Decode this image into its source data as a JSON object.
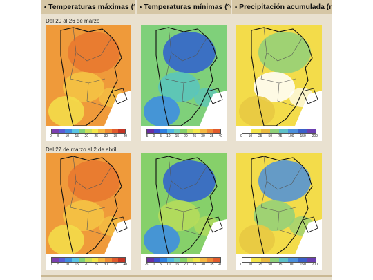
{
  "headers": [
    {
      "bullet": "•",
      "title": "Temperaturas máximas (°C)"
    },
    {
      "bullet": "•",
      "title": "Temperaturas mínimas (°C)"
    },
    {
      "bullet": "•",
      "title": "Precipitación acumulada (mm)"
    }
  ],
  "periods": [
    "Del 20 al 26 de marzo",
    "Del 27 de marzo al 2 de abril"
  ],
  "scales": {
    "tmax": {
      "ticks": [
        "0",
        "5",
        "10",
        "15",
        "20",
        "25",
        "30",
        "35",
        "40"
      ],
      "colors": [
        "#7b3fb0",
        "#5a5bd4",
        "#3f8ee0",
        "#58c4e4",
        "#7fd07a",
        "#c9e05a",
        "#f3e74b",
        "#f5b843",
        "#ef8a36",
        "#e15b2c",
        "#c43424"
      ]
    },
    "tmin": {
      "ticks": [
        "-5",
        "0",
        "5",
        "10",
        "15",
        "20",
        "25",
        "30",
        "35",
        "40"
      ],
      "colors": [
        "#6a2fa0",
        "#3a4fd0",
        "#2f7fe0",
        "#4fb4e6",
        "#6fd0b8",
        "#86d06a",
        "#c9e05a",
        "#f3e74b",
        "#f5b843",
        "#ef8a36",
        "#e15b2c"
      ]
    },
    "precip": {
      "ticks": [
        "0",
        "10",
        "25",
        "50",
        "75",
        "100",
        "150",
        "200"
      ],
      "colors": [
        "#ffffff",
        "#f3e44a",
        "#e8b93f",
        "#8fd07a",
        "#5ec0c8",
        "#4b8fdc",
        "#3a5fc8",
        "#6a3fb0"
      ]
    }
  },
  "panels": [
    {
      "row": 0,
      "col": 0,
      "base": "#ef9a3a",
      "mid": "#f5c545",
      "south": "#f3dc4a",
      "accent": "#e8772f",
      "ocean": "#ffffff"
    },
    {
      "row": 0,
      "col": 1,
      "base": "#7fd07a",
      "mid": "#58c4c0",
      "south": "#3f8ee0",
      "accent": "#2f5fd0",
      "ocean": "#ffffff"
    },
    {
      "row": 0,
      "col": 2,
      "base": "#f3dc4a",
      "mid": "#ffffff",
      "south": "#e8c943",
      "accent": "#8fd07a",
      "ocean": "#ffffff"
    },
    {
      "row": 1,
      "col": 0,
      "base": "#ef9a3a",
      "mid": "#f5c545",
      "south": "#f3dc4a",
      "accent": "#e8772f",
      "ocean": "#ffffff"
    },
    {
      "row": 1,
      "col": 1,
      "base": "#86d06a",
      "mid": "#b8dd5a",
      "south": "#3f8ee0",
      "accent": "#2f5fd0",
      "ocean": "#ffffff"
    },
    {
      "row": 1,
      "col": 2,
      "base": "#f3dc4a",
      "mid": "#8fd07a",
      "south": "#e8c943",
      "accent": "#4b8fdc",
      "ocean": "#ffffff"
    }
  ]
}
